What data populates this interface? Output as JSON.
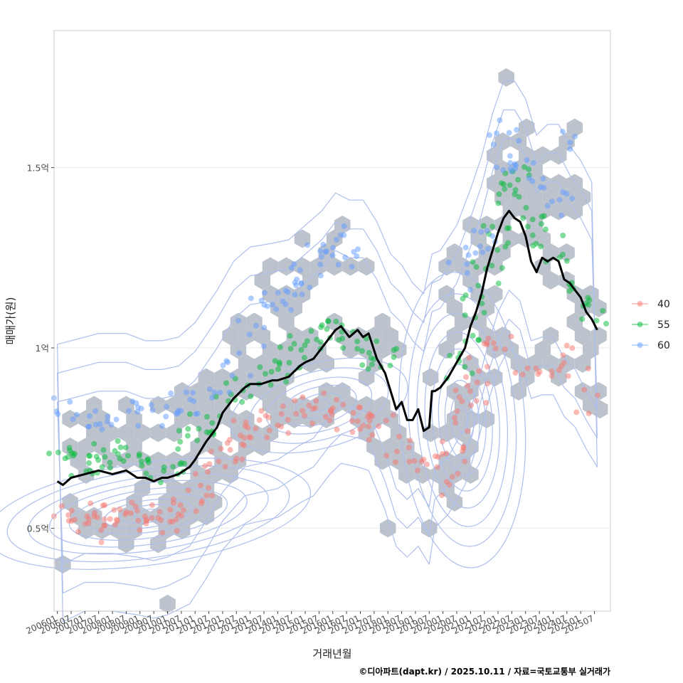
{
  "chart_data": {
    "type": "scatter",
    "xlabel": "거래년월",
    "ylabel": "매매가(원)",
    "y_unit": "억",
    "ylim": [
      0.27,
      1.88
    ],
    "y_ticks": [
      {
        "value": 0.5,
        "label": "0.5억"
      },
      {
        "value": 1.0,
        "label": "1억"
      },
      {
        "value": 1.5,
        "label": "1.5억"
      }
    ],
    "x_range": [
      "200511",
      "202601"
    ],
    "x_tick_labels": [
      "200601",
      "200607",
      "200701",
      "200707",
      "200801",
      "200807",
      "200901",
      "200907",
      "201001",
      "201007",
      "201101",
      "201107",
      "201201",
      "201207",
      "201301",
      "201307",
      "201401",
      "201407",
      "201501",
      "201507",
      "201601",
      "201607",
      "201701",
      "201707",
      "201801",
      "201807",
      "201901",
      "201907",
      "202001",
      "202007",
      "202101",
      "202107",
      "202201",
      "202207",
      "202301",
      "202307",
      "202401",
      "202407",
      "202501",
      "202507"
    ],
    "legend": {
      "position": "right",
      "entries": [
        {
          "label": "40",
          "color": "#F8766D"
        },
        {
          "label": "55",
          "color": "#00BA38"
        },
        {
          "label": "60",
          "color": "#619CFF"
        }
      ]
    },
    "colors": {
      "hex_fill": "#bcc3cc",
      "contour": "#aebfec",
      "trend": "#000000",
      "grid": "#ebebeb",
      "panel_border": "#cccccc"
    },
    "trend_line": {
      "name": "moving average",
      "x": [
        2006.0,
        2006.2,
        2006.5,
        2007.0,
        2007.5,
        2008.0,
        2008.5,
        2008.9,
        2009.2,
        2009.5,
        2009.8,
        2010.0,
        2010.4,
        2010.8,
        2011.0,
        2011.4,
        2011.8,
        2012.0,
        2012.4,
        2012.8,
        2013.0,
        2013.4,
        2013.8,
        2014.0,
        2014.4,
        2014.8,
        2015.0,
        2015.3,
        2015.6,
        2015.9,
        2016.1,
        2016.3,
        2016.6,
        2016.9,
        2017.1,
        2017.3,
        2017.6,
        2017.9,
        2018.1,
        2018.3,
        2018.5,
        2018.7,
        2018.9,
        2019.1,
        2019.3,
        2019.5,
        2019.6,
        2019.7,
        2019.9,
        2020.2,
        2020.5,
        2020.8,
        2021.0,
        2021.2,
        2021.4,
        2021.6,
        2021.8,
        2022.0,
        2022.2,
        2022.4,
        2022.6,
        2022.8,
        2023.0,
        2023.2,
        2023.4,
        2023.6,
        2023.8,
        2024.0,
        2024.2,
        2024.4,
        2024.6,
        2024.8,
        2025.0,
        2025.2,
        2025.4,
        2025.6
      ],
      "y": [
        0.63,
        0.62,
        0.64,
        0.65,
        0.66,
        0.65,
        0.66,
        0.64,
        0.64,
        0.63,
        0.64,
        0.64,
        0.65,
        0.67,
        0.69,
        0.74,
        0.78,
        0.82,
        0.86,
        0.89,
        0.9,
        0.9,
        0.91,
        0.91,
        0.92,
        0.95,
        0.96,
        0.97,
        1.0,
        1.03,
        1.05,
        1.06,
        1.03,
        1.05,
        1.03,
        1.04,
        0.97,
        0.93,
        0.88,
        0.83,
        0.85,
        0.8,
        0.8,
        0.83,
        0.77,
        0.78,
        0.88,
        0.88,
        0.89,
        0.92,
        0.96,
        1.0,
        1.06,
        1.1,
        1.15,
        1.22,
        1.27,
        1.32,
        1.36,
        1.38,
        1.36,
        1.35,
        1.31,
        1.24,
        1.21,
        1.25,
        1.24,
        1.25,
        1.24,
        1.19,
        1.18,
        1.16,
        1.14,
        1.1,
        1.08,
        1.05
      ]
    }
  },
  "credit": "©디아파트(dapt.kr) / 2025.10.11 / 자료=국토교통부 실거래가"
}
